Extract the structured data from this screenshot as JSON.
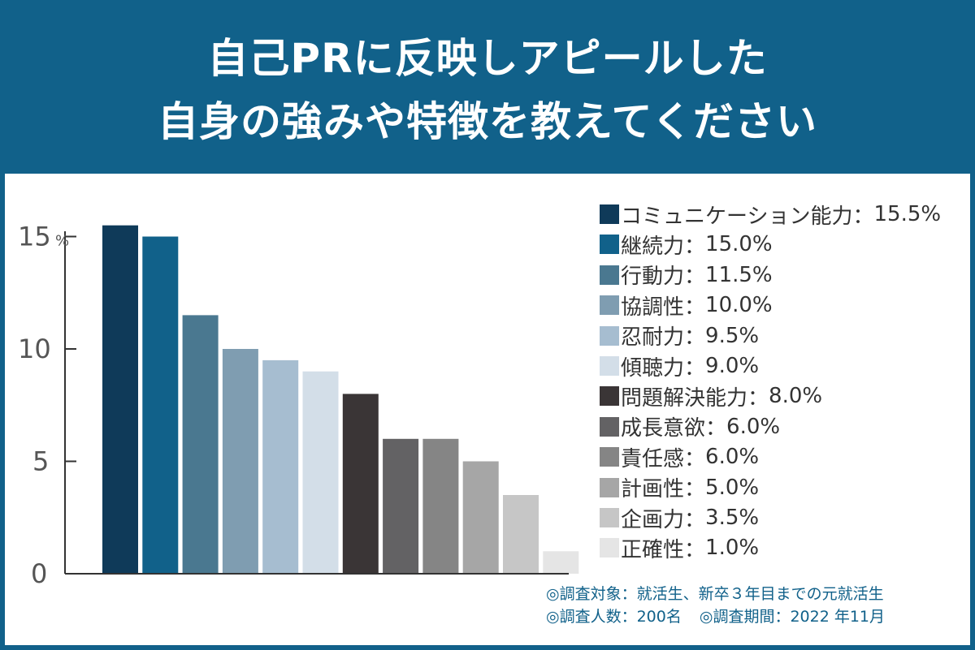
{
  "header": {
    "title_line1": "自己PRに反映しアピールした",
    "title_line2": "自身の強みや特徴を教えてください"
  },
  "chart_data": {
    "type": "bar",
    "title": "自己PRに反映しアピールした自身の強みや特徴を教えてください",
    "ylabel": "%",
    "ylim": [
      0,
      15
    ],
    "yticks": [
      "0",
      "5",
      "10",
      "15"
    ],
    "y_unit": "%",
    "categories": [
      "コミュニケーション能力",
      "継続力",
      "行動力",
      "協調性",
      "忍耐力",
      "傾聴力",
      "問題解決能力",
      "成長意欲",
      "責任感",
      "計画性",
      "企画力",
      "正確性"
    ],
    "values": [
      15.5,
      15.0,
      11.5,
      10.0,
      9.5,
      9.0,
      8.0,
      6.0,
      6.0,
      5.0,
      3.5,
      1.0
    ],
    "value_labels": [
      "15.5%",
      "15.0%",
      "11.5%",
      "10.0%",
      "9.5%",
      "9.0%",
      "8.0%",
      "6.0%",
      "6.0%",
      "5.0%",
      "3.5%",
      "1.0%"
    ],
    "colors": [
      "#0f3a59",
      "#11618a",
      "#4a7890",
      "#7f9db1",
      "#a6bdd0",
      "#d3dee8",
      "#3a3536",
      "#636264",
      "#858585",
      "#a6a6a6",
      "#c6c6c6",
      "#e5e5e5"
    ],
    "legend_position": "right",
    "separator": "：",
    "grid": false
  },
  "notes": {
    "target": "◎調査対象：就活生、新卒３年目までの元就活生",
    "respondents": "◎調査人数：200名",
    "period": "◎調査期間：2022 年11月"
  }
}
